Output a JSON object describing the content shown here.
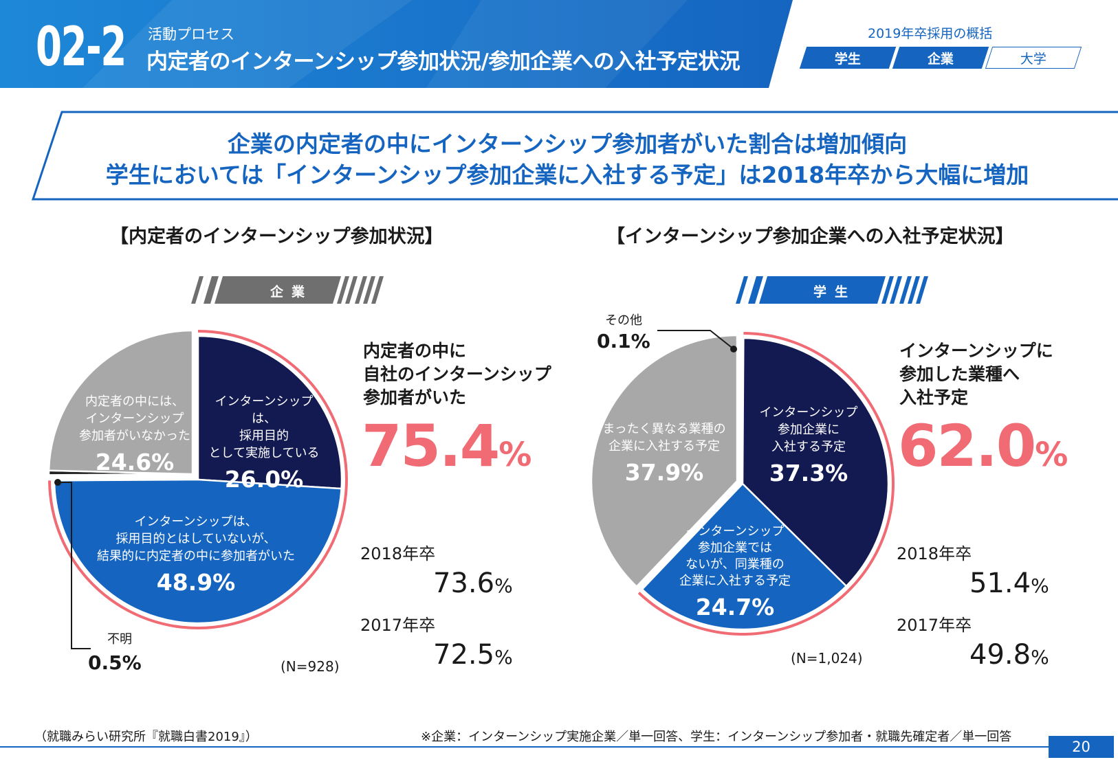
{
  "header": {
    "section_number": "02-2",
    "subtitle": "活動プロセス",
    "title": "内定者のインターンシップ参加状況/参加企業への入社予定状況",
    "overview_label": "2019年卒採用の概括",
    "tabs": [
      {
        "label": "学生"
      },
      {
        "label": "企業"
      },
      {
        "label": "大学"
      }
    ],
    "colors": {
      "brand": "#1565c0",
      "accent": "#f06b73"
    }
  },
  "headline": {
    "line1": "企業の内定者の中にインターンシップ参加者がいた割合は増加傾向",
    "line2": "学生においては「インターンシップ参加企業に入社する予定」は2018年卒から大幅に増加"
  },
  "chart_data": [
    {
      "type": "pie",
      "title": "【内定者のインターンシップ参加状況】",
      "banner": "企業",
      "sample": "(N=928)",
      "slices": [
        {
          "label": "インターンシップは、採用目的として実施している",
          "lines": [
            "インターンシップは、",
            "採用目的",
            "として実施している"
          ],
          "value": 26.0,
          "pct": "26.0%",
          "color": "#131a52"
        },
        {
          "label": "インターンシップは、採用目的とはしていないが、結果的に内定者の中に参加者がいた",
          "lines": [
            "インターンシップは、",
            "採用目的とはしていないが、",
            "結果的に内定者の中に参加者がいた"
          ],
          "value": 48.9,
          "pct": "48.9%",
          "color": "#1565c0"
        },
        {
          "label": "不明",
          "value": 0.5,
          "pct": "0.5%",
          "color": "#222222"
        },
        {
          "label": "内定者の中には、インターンシップ参加者がいなかった",
          "lines": [
            "内定者の中には、",
            "インターンシップ",
            "参加者がいなかった"
          ],
          "value": 24.6,
          "pct": "24.6%",
          "color": "#a8a8a8"
        }
      ],
      "summary": {
        "heading": [
          "内定者の中に",
          "自社のインターンシップ",
          "参加者がいた"
        ],
        "value": "75.4",
        "unit": "%",
        "history": [
          {
            "year": "2018年卒",
            "value": "73.6",
            "unit": "%"
          },
          {
            "year": "2017年卒",
            "value": "72.5",
            "unit": "%"
          }
        ]
      }
    },
    {
      "type": "pie",
      "title": "【インターンシップ参加企業への入社予定状況】",
      "banner": "学生",
      "sample": "(N=1,024)",
      "slices": [
        {
          "label": "その他",
          "value": 0.1,
          "pct": "0.1%",
          "color": "#222222"
        },
        {
          "label": "インターンシップ参加企業に入社する予定",
          "lines": [
            "インターンシップ",
            "参加企業に",
            "入社する予定"
          ],
          "value": 37.3,
          "pct": "37.3%",
          "color": "#131a52"
        },
        {
          "label": "インターンシップ参加企業ではないが、同業種の企業に入社する予定",
          "lines": [
            "インターンシップ",
            "参加企業では",
            "ないが、同業種の",
            "企業に入社する予定"
          ],
          "value": 24.7,
          "pct": "24.7%",
          "color": "#1565c0"
        },
        {
          "label": "まったく異なる業種の企業に入社する予定",
          "lines": [
            "まったく異なる業種の",
            "企業に入社する予定"
          ],
          "value": 37.9,
          "pct": "37.9%",
          "color": "#a8a8a8"
        }
      ],
      "summary": {
        "heading": [
          "インターンシップに",
          "参加した業種へ",
          "入社予定"
        ],
        "value": "62.0",
        "unit": "%",
        "history": [
          {
            "year": "2018年卒",
            "value": "51.4",
            "unit": "%"
          },
          {
            "year": "2017年卒",
            "value": "49.8",
            "unit": "%"
          }
        ]
      }
    }
  ],
  "footer": {
    "source": "（就職みらい研究所『就職白書2019』）",
    "note": "※企業：インターンシップ実施企業／単一回答、学生：インターンシップ参加者・就職先確定者／単一回答",
    "page": "20"
  }
}
